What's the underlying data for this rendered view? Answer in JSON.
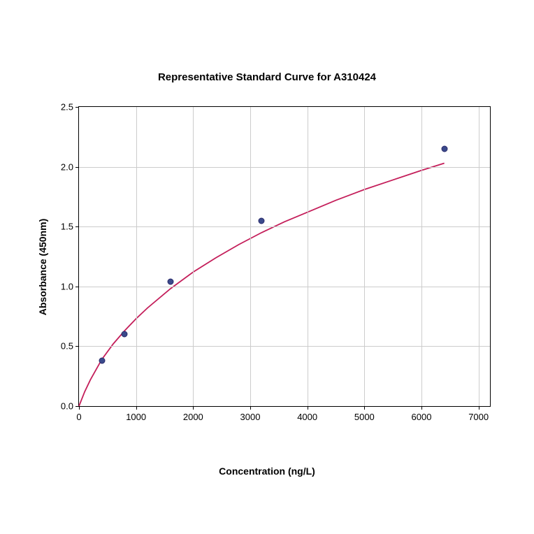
{
  "chart": {
    "type": "scatter-with-curve",
    "title": "Representative Standard Curve for A310424",
    "title_fontsize": 15,
    "xlabel": "Concentration (ng/L)",
    "ylabel": "Absorbance (450nm)",
    "label_fontsize": 14,
    "tick_fontsize": 13,
    "background_color": "#ffffff",
    "grid_color": "#cccccc",
    "border_color": "#000000",
    "xlim": [
      0,
      7200
    ],
    "ylim": [
      0,
      2.5
    ],
    "xticks": [
      0,
      1000,
      2000,
      3000,
      4000,
      5000,
      6000,
      7000
    ],
    "yticks": [
      0.0,
      0.5,
      1.0,
      1.5,
      2.0,
      2.5
    ],
    "ytick_labels": [
      "0.0",
      "0.5",
      "1.0",
      "1.5",
      "2.0",
      "2.5"
    ],
    "data_points": {
      "x": [
        400,
        800,
        1600,
        3200,
        6400
      ],
      "y": [
        0.38,
        0.6,
        1.04,
        1.55,
        2.15
      ]
    },
    "marker_color": "#3b4a8c",
    "marker_edge_color": "#2a2a6a",
    "marker_size": 9,
    "curve_color": "#c41e5a",
    "curve_width": 1.8,
    "curve_points": {
      "x": [
        0,
        100,
        200,
        400,
        600,
        800,
        1000,
        1200,
        1600,
        2000,
        2400,
        2800,
        3200,
        3600,
        4000,
        4500,
        5000,
        5500,
        6000,
        6400
      ],
      "y": [
        0.0,
        0.12,
        0.22,
        0.39,
        0.52,
        0.63,
        0.73,
        0.82,
        0.98,
        1.12,
        1.24,
        1.35,
        1.45,
        1.54,
        1.62,
        1.72,
        1.81,
        1.89,
        1.97,
        2.03
      ]
    }
  }
}
